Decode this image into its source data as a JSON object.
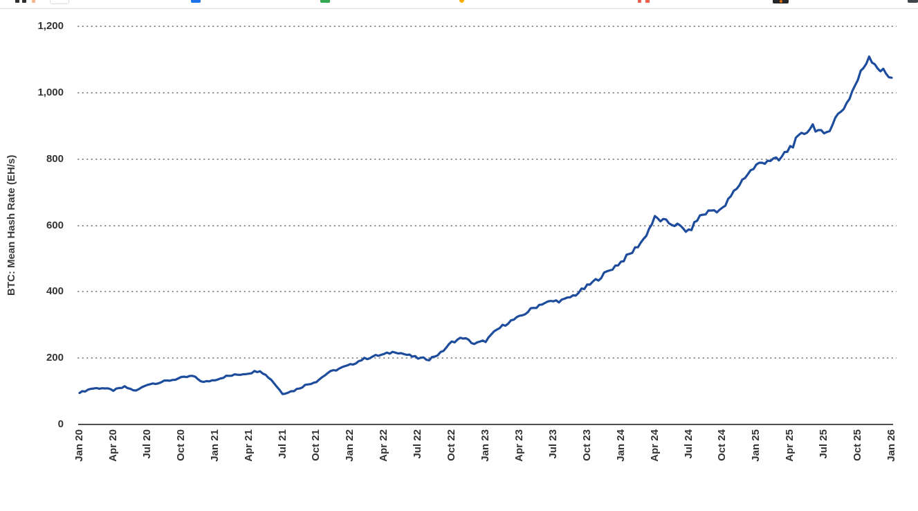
{
  "topbar": {
    "favicons": [
      {
        "name": "bookmark-favicon-grid-left",
        "color": "#2d2d2d"
      },
      {
        "name": "bookmark-favicon-grid-right",
        "color": "#2d2d2d"
      },
      {
        "name": "bookmark-favicon-peach",
        "color": "#f5b48e"
      },
      {
        "name": "bookmark-favicon-outline",
        "color": "#ffffff"
      },
      {
        "name": "bookmark-favicon-blue",
        "color": "#1a73e8"
      },
      {
        "name": "bookmark-favicon-green",
        "color": "#34a853"
      },
      {
        "name": "bookmark-favicon-orange-dot",
        "color": "#f9ab00"
      },
      {
        "name": "bookmark-favicon-red-left",
        "color": "#f05b4b"
      },
      {
        "name": "bookmark-favicon-red-right",
        "color": "#f05b4b"
      },
      {
        "name": "bookmark-favicon-dark-camera",
        "color": "#24282d"
      },
      {
        "name": "bookmark-favicon-dark-right",
        "color": "#3f454d"
      }
    ]
  },
  "chart": {
    "y_axis_title": "BTC: Mean Hash Rate (EH/s)",
    "line_color": "#1e4c9c",
    "grid_color": "#8c8c8c",
    "axis_color": "#4d4d4d",
    "text_color": "#333333",
    "y_ticks": [
      {
        "label": "1,200",
        "value": 1200
      },
      {
        "label": "1,000",
        "value": 1000
      },
      {
        "label": "800",
        "value": 800
      },
      {
        "label": "600",
        "value": 600
      },
      {
        "label": "400",
        "value": 400
      },
      {
        "label": "200",
        "value": 200
      },
      {
        "label": "0",
        "value": 0
      }
    ],
    "x_ticks": [
      {
        "label": "Jan 20",
        "month": 0
      },
      {
        "label": "Apr 20",
        "month": 3
      },
      {
        "label": "Jul 20",
        "month": 6
      },
      {
        "label": "Oct 20",
        "month": 9
      },
      {
        "label": "Jan 21",
        "month": 12
      },
      {
        "label": "Apr 21",
        "month": 15
      },
      {
        "label": "Jul 21",
        "month": 18
      },
      {
        "label": "Oct 21",
        "month": 21
      },
      {
        "label": "Jan 22",
        "month": 24
      },
      {
        "label": "Apr 22",
        "month": 27
      },
      {
        "label": "Jul 22",
        "month": 30
      },
      {
        "label": "Oct 22",
        "month": 33
      },
      {
        "label": "Jan 23",
        "month": 36
      },
      {
        "label": "Apr 23",
        "month": 39
      },
      {
        "label": "Jul 23",
        "month": 42
      },
      {
        "label": "Oct 23",
        "month": 45
      },
      {
        "label": "Jan 24",
        "month": 48
      },
      {
        "label": "Apr 24",
        "month": 51
      },
      {
        "label": "Jul 24",
        "month": 54
      },
      {
        "label": "Oct 24",
        "month": 57
      },
      {
        "label": "Jan 25",
        "month": 60
      },
      {
        "label": "Apr 25",
        "month": 63
      },
      {
        "label": "Jul 25",
        "month": 66
      },
      {
        "label": "Oct 25",
        "month": 69
      },
      {
        "label": "Jan 26",
        "month": 72
      }
    ]
  },
  "chart_data": {
    "type": "line",
    "title": "",
    "xlabel": "",
    "ylabel": "BTC: Mean Hash Rate (EH/s)",
    "ylim": [
      0,
      1200
    ],
    "grid": "horizontal-dotted",
    "legend": "none",
    "x_start": "Jan 2020",
    "x_end": "Jan 2026",
    "x_interval": "monthly",
    "categories_quarterly": [
      "Jan 20",
      "Apr 20",
      "Jul 20",
      "Oct 20",
      "Jan 21",
      "Apr 21",
      "Jul 21",
      "Oct 21",
      "Jan 22",
      "Apr 22",
      "Jul 22",
      "Oct 22",
      "Jan 23",
      "Apr 23",
      "Jul 23",
      "Oct 23",
      "Jan 24",
      "Apr 24",
      "Jul 24",
      "Oct 24",
      "Jan 25",
      "Apr 25",
      "Jul 25",
      "Oct 25",
      "Jan 26"
    ],
    "series": [
      {
        "name": "BTC Mean Hash Rate (EH/s)",
        "monthly_values": [
          95,
          108,
          110,
          103,
          113,
          101,
          121,
          126,
          133,
          140,
          146,
          127,
          135,
          145,
          150,
          155,
          163,
          135,
          93,
          102,
          118,
          130,
          155,
          168,
          179,
          195,
          205,
          211,
          220,
          210,
          200,
          197,
          215,
          248,
          262,
          243,
          252,
          285,
          308,
          323,
          346,
          365,
          371,
          375,
          392,
          416,
          440,
          465,
          490,
          520,
          558,
          622,
          610,
          600,
          580,
          628,
          645,
          648,
          700,
          748,
          780,
          798,
          795,
          836,
          871,
          902,
          868,
          922,
          968,
          1040,
          1112,
          1068,
          1045
        ]
      }
    ]
  }
}
